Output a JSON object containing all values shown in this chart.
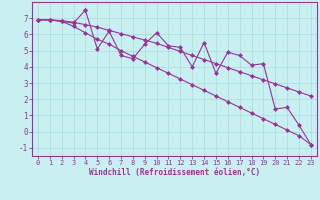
{
  "xlabel": "Windchill (Refroidissement éolien,°C)",
  "bg_color": "#c8f0f0",
  "grid_color": "#b0dede",
  "line_color": "#993399",
  "xlim": [
    -0.5,
    23.5
  ],
  "ylim": [
    -1.5,
    8.0
  ],
  "yticks": [
    -1,
    0,
    1,
    2,
    3,
    4,
    5,
    6,
    7
  ],
  "xticks": [
    0,
    1,
    2,
    3,
    4,
    5,
    6,
    7,
    8,
    9,
    10,
    11,
    12,
    13,
    14,
    15,
    16,
    17,
    18,
    19,
    20,
    21,
    22,
    23
  ],
  "series1_x": [
    0,
    1,
    2,
    3,
    4,
    4,
    5,
    6,
    7,
    8,
    9,
    10,
    11,
    12,
    13,
    14,
    15,
    16,
    17,
    18,
    19,
    20,
    21,
    22,
    23
  ],
  "series1_y": [
    6.9,
    6.9,
    6.8,
    6.7,
    7.5,
    7.5,
    5.1,
    6.2,
    4.7,
    4.5,
    5.4,
    6.1,
    5.3,
    5.2,
    4.0,
    5.5,
    3.6,
    4.9,
    4.7,
    4.1,
    4.2,
    1.4,
    1.5,
    0.4,
    -0.8
  ],
  "series2_x": [
    0,
    1,
    2,
    3,
    4,
    5,
    6,
    7,
    8,
    9,
    10,
    11,
    12,
    13,
    14,
    15,
    16,
    17,
    18,
    19,
    20,
    21,
    22,
    23
  ],
  "series2_y": [
    6.9,
    6.9,
    6.85,
    6.75,
    6.6,
    6.45,
    6.25,
    6.05,
    5.85,
    5.65,
    5.45,
    5.2,
    4.95,
    4.7,
    4.45,
    4.2,
    3.95,
    3.7,
    3.45,
    3.2,
    2.95,
    2.7,
    2.45,
    2.2
  ],
  "series3_x": [
    0,
    1,
    2,
    3,
    4,
    5,
    6,
    7,
    8,
    9,
    10,
    11,
    12,
    13,
    14,
    15,
    16,
    17,
    18,
    19,
    20,
    21,
    22,
    23
  ],
  "series3_y": [
    6.9,
    6.9,
    6.8,
    6.5,
    6.1,
    5.7,
    5.4,
    5.0,
    4.65,
    4.3,
    3.95,
    3.6,
    3.25,
    2.9,
    2.55,
    2.2,
    1.85,
    1.5,
    1.15,
    0.8,
    0.45,
    0.1,
    -0.25,
    -0.8
  ],
  "marker": "D",
  "markersize": 2.5,
  "linewidth": 0.8,
  "tick_fontsize": 5.0,
  "xlabel_fontsize": 5.5
}
